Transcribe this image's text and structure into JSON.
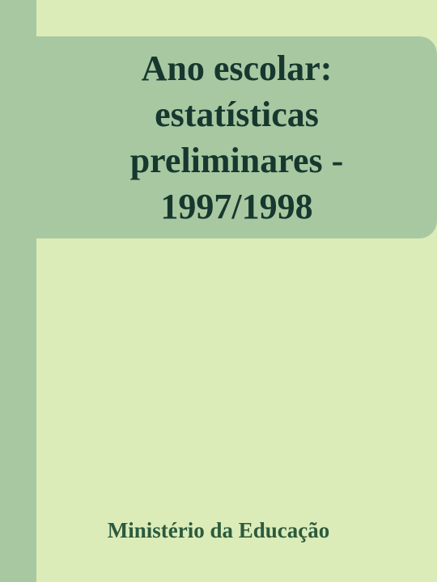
{
  "cover": {
    "title": "Ano escolar: estatísticas preliminares - 1997/1998",
    "publisher": "Ministério da Educação",
    "colors": {
      "background": "#dbecb8",
      "band": "#a8c8a2",
      "title_text": "#16382e",
      "publisher_text": "#2c5a3e"
    }
  }
}
